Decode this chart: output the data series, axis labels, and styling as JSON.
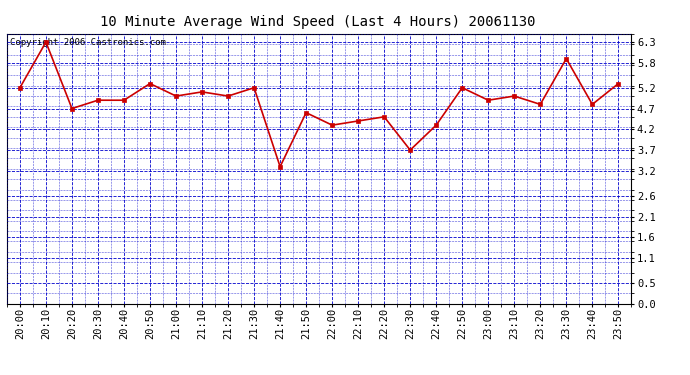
{
  "title": "10 Minute Average Wind Speed (Last 4 Hours) 20061130",
  "copyright_text": "Copyright 2006 Castronics.com",
  "x_labels": [
    "20:00",
    "20:10",
    "20:20",
    "20:30",
    "20:40",
    "20:50",
    "21:00",
    "21:10",
    "21:20",
    "21:30",
    "21:40",
    "21:50",
    "22:00",
    "22:10",
    "22:20",
    "22:30",
    "22:40",
    "22:50",
    "23:00",
    "23:10",
    "23:20",
    "23:30",
    "23:40",
    "23:50"
  ],
  "y_values": [
    5.2,
    6.3,
    4.7,
    4.9,
    4.9,
    5.3,
    5.0,
    5.1,
    5.0,
    5.2,
    3.3,
    4.6,
    4.3,
    4.4,
    4.5,
    3.7,
    4.3,
    5.2,
    4.9,
    5.0,
    4.8,
    5.9,
    4.8,
    5.3
  ],
  "line_color": "#cc0000",
  "marker_color": "#cc0000",
  "background_color": "#ffffff",
  "plot_bg_color": "#ffffff",
  "grid_color": "#0000cc",
  "axis_color": "#000000",
  "title_color": "#000000",
  "y_ticks": [
    0.0,
    0.5,
    1.1,
    1.6,
    2.1,
    2.6,
    3.2,
    3.7,
    4.2,
    4.7,
    5.2,
    5.8,
    6.3
  ],
  "ylim": [
    0.0,
    6.5
  ],
  "title_fontsize": 10,
  "copyright_fontsize": 6.5,
  "tick_fontsize": 7.5,
  "marker_size": 3,
  "line_width": 1.2
}
